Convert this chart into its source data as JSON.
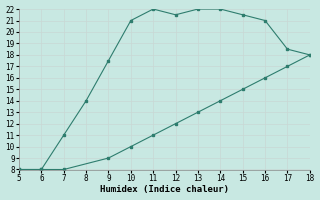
{
  "xlabel": "Humidex (Indice chaleur)",
  "x_upper": [
    5,
    6,
    7,
    8,
    9,
    10,
    11,
    12,
    13,
    14,
    15,
    16,
    17,
    18
  ],
  "y_upper": [
    8,
    8,
    11,
    14,
    17.5,
    21,
    22,
    21.5,
    22,
    22,
    21.5,
    21,
    18.5,
    18
  ],
  "x_lower": [
    5,
    6,
    7,
    9,
    10,
    11,
    12,
    13,
    14,
    15,
    16,
    17,
    18
  ],
  "y_lower": [
    8,
    8,
    8,
    9,
    10,
    11,
    12,
    13,
    14,
    15,
    16,
    17,
    18
  ],
  "line_color": "#2e7d6e",
  "bg_color": "#c8e8e2",
  "grid_major_color": "#b8d8d2",
  "grid_minor_color": "#d0e8e4",
  "xlim": [
    5,
    18
  ],
  "ylim": [
    8,
    22
  ],
  "xticks": [
    5,
    6,
    7,
    8,
    9,
    10,
    11,
    12,
    13,
    14,
    15,
    16,
    17,
    18
  ],
  "yticks": [
    8,
    9,
    10,
    11,
    12,
    13,
    14,
    15,
    16,
    17,
    18,
    19,
    20,
    21,
    22
  ]
}
